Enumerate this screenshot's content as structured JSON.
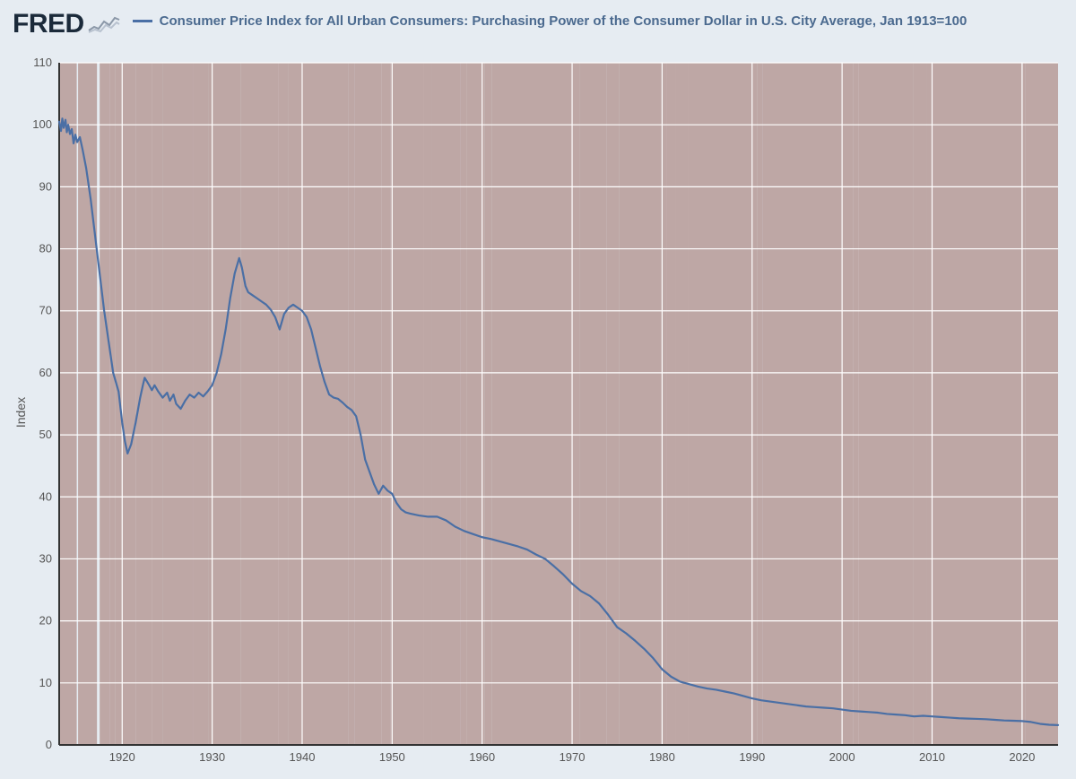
{
  "header": {
    "logo_text": "FRED",
    "legend_label": "Consumer Price Index for All Urban Consumers: Purchasing Power of the Consumer Dollar in U.S. City Average, Jan 1913=100"
  },
  "chart": {
    "type": "line",
    "ylabel": "Index",
    "x_domain": [
      1913,
      2024
    ],
    "y_domain": [
      0,
      110
    ],
    "x_ticks": [
      1920,
      1930,
      1940,
      1950,
      1960,
      1970,
      1980,
      1990,
      2000,
      2010,
      2020
    ],
    "y_ticks": [
      0,
      10,
      20,
      30,
      40,
      50,
      60,
      70,
      80,
      90,
      100,
      110
    ],
    "background_color": "#e6ecf2",
    "plot_background": "#e6ecf2",
    "recession_fill": "#bea7a5",
    "grid_color": "#ffffff",
    "grid_width": 1.2,
    "axis_line_color": "#333333",
    "line_color": "#4a6fa5",
    "line_width": 2.2,
    "tick_font_size": 13,
    "label_font_size": 14,
    "legend_font_size": 15,
    "recession_bands": [
      [
        1913.0,
        1914.95
      ],
      [
        1918.6,
        1919.2
      ],
      [
        1920.05,
        1921.55
      ],
      [
        1923.35,
        1924.55
      ],
      [
        1926.75,
        1927.85
      ],
      [
        1929.6,
        1933.2
      ],
      [
        1937.35,
        1938.45
      ],
      [
        1945.1,
        1945.8
      ],
      [
        1948.85,
        1949.8
      ],
      [
        1953.5,
        1954.4
      ],
      [
        1957.6,
        1958.3
      ],
      [
        1960.3,
        1961.1
      ],
      [
        1969.95,
        1970.85
      ],
      [
        1973.85,
        1975.2
      ],
      [
        1980.05,
        1980.55
      ],
      [
        1981.55,
        1982.85
      ],
      [
        1990.55,
        1991.2
      ],
      [
        2001.2,
        2001.85
      ],
      [
        2007.95,
        2009.45
      ],
      [
        2020.1,
        2020.35
      ]
    ],
    "recession_overlay_bands": [
      [
        1915.1,
        1917.2
      ],
      [
        1917.5,
        1918.6
      ],
      [
        1919.2,
        1920.05
      ],
      [
        1921.55,
        1923.35
      ],
      [
        1924.55,
        1926.75
      ],
      [
        1927.85,
        1929.6
      ],
      [
        1933.2,
        1937.35
      ],
      [
        1938.45,
        1945.1
      ],
      [
        1945.8,
        1948.85
      ],
      [
        1949.8,
        1953.5
      ],
      [
        1954.4,
        1957.6
      ],
      [
        1958.3,
        1960.3
      ],
      [
        1961.1,
        1969.95
      ],
      [
        1970.85,
        1973.85
      ],
      [
        1975.2,
        1980.05
      ],
      [
        1980.55,
        1981.55
      ],
      [
        1982.85,
        1990.55
      ],
      [
        1991.2,
        2001.2
      ],
      [
        2001.85,
        2007.95
      ],
      [
        2009.45,
        2020.1
      ],
      [
        2020.35,
        2024.0
      ]
    ],
    "series": [
      {
        "x": 1913.0,
        "y": 100.5
      },
      {
        "x": 1913.2,
        "y": 99.0
      },
      {
        "x": 1913.35,
        "y": 101.0
      },
      {
        "x": 1913.5,
        "y": 99.5
      },
      {
        "x": 1913.7,
        "y": 100.8
      },
      {
        "x": 1913.85,
        "y": 98.8
      },
      {
        "x": 1914.0,
        "y": 100.0
      },
      {
        "x": 1914.2,
        "y": 98.5
      },
      {
        "x": 1914.4,
        "y": 99.3
      },
      {
        "x": 1914.6,
        "y": 97.0
      },
      {
        "x": 1914.8,
        "y": 98.4
      },
      {
        "x": 1915.0,
        "y": 97.2
      },
      {
        "x": 1915.3,
        "y": 98.0
      },
      {
        "x": 1915.6,
        "y": 96.0
      },
      {
        "x": 1916.0,
        "y": 93.0
      },
      {
        "x": 1916.5,
        "y": 88.0
      },
      {
        "x": 1917.0,
        "y": 82.0
      },
      {
        "x": 1917.5,
        "y": 76.0
      },
      {
        "x": 1918.0,
        "y": 70.0
      },
      {
        "x": 1918.5,
        "y": 65.0
      },
      {
        "x": 1919.0,
        "y": 60.0
      },
      {
        "x": 1919.3,
        "y": 58.5
      },
      {
        "x": 1919.6,
        "y": 57.0
      },
      {
        "x": 1920.0,
        "y": 52.0
      },
      {
        "x": 1920.3,
        "y": 49.0
      },
      {
        "x": 1920.6,
        "y": 47.0
      },
      {
        "x": 1921.0,
        "y": 48.5
      },
      {
        "x": 1921.5,
        "y": 52.0
      },
      {
        "x": 1922.0,
        "y": 56.0
      },
      {
        "x": 1922.3,
        "y": 58.0
      },
      {
        "x": 1922.5,
        "y": 59.2
      },
      {
        "x": 1922.8,
        "y": 58.5
      },
      {
        "x": 1923.0,
        "y": 58.0
      },
      {
        "x": 1923.3,
        "y": 57.2
      },
      {
        "x": 1923.6,
        "y": 58.0
      },
      {
        "x": 1924.0,
        "y": 57.0
      },
      {
        "x": 1924.5,
        "y": 56.0
      },
      {
        "x": 1925.0,
        "y": 56.8
      },
      {
        "x": 1925.3,
        "y": 55.5
      },
      {
        "x": 1925.7,
        "y": 56.5
      },
      {
        "x": 1926.0,
        "y": 55.0
      },
      {
        "x": 1926.5,
        "y": 54.2
      },
      {
        "x": 1927.0,
        "y": 55.5
      },
      {
        "x": 1927.5,
        "y": 56.5
      },
      {
        "x": 1928.0,
        "y": 56.0
      },
      {
        "x": 1928.5,
        "y": 56.8
      },
      {
        "x": 1929.0,
        "y": 56.2
      },
      {
        "x": 1929.5,
        "y": 57.0
      },
      {
        "x": 1930.0,
        "y": 58.0
      },
      {
        "x": 1930.5,
        "y": 60.0
      },
      {
        "x": 1931.0,
        "y": 63.0
      },
      {
        "x": 1931.5,
        "y": 67.0
      },
      {
        "x": 1932.0,
        "y": 72.0
      },
      {
        "x": 1932.5,
        "y": 76.0
      },
      {
        "x": 1933.0,
        "y": 78.5
      },
      {
        "x": 1933.3,
        "y": 77.0
      },
      {
        "x": 1933.7,
        "y": 74.0
      },
      {
        "x": 1934.0,
        "y": 73.0
      },
      {
        "x": 1934.5,
        "y": 72.5
      },
      {
        "x": 1935.0,
        "y": 72.0
      },
      {
        "x": 1935.5,
        "y": 71.5
      },
      {
        "x": 1936.0,
        "y": 71.0
      },
      {
        "x": 1936.5,
        "y": 70.2
      },
      {
        "x": 1937.0,
        "y": 69.0
      },
      {
        "x": 1937.5,
        "y": 67.0
      },
      {
        "x": 1938.0,
        "y": 69.5
      },
      {
        "x": 1938.5,
        "y": 70.5
      },
      {
        "x": 1939.0,
        "y": 71.0
      },
      {
        "x": 1939.5,
        "y": 70.5
      },
      {
        "x": 1940.0,
        "y": 70.0
      },
      {
        "x": 1940.5,
        "y": 69.0
      },
      {
        "x": 1941.0,
        "y": 67.0
      },
      {
        "x": 1941.5,
        "y": 64.0
      },
      {
        "x": 1942.0,
        "y": 61.0
      },
      {
        "x": 1942.5,
        "y": 58.5
      },
      {
        "x": 1943.0,
        "y": 56.5
      },
      {
        "x": 1943.5,
        "y": 56.0
      },
      {
        "x": 1944.0,
        "y": 55.8
      },
      {
        "x": 1944.5,
        "y": 55.2
      },
      {
        "x": 1945.0,
        "y": 54.5
      },
      {
        "x": 1945.5,
        "y": 54.0
      },
      {
        "x": 1946.0,
        "y": 53.0
      },
      {
        "x": 1946.5,
        "y": 50.0
      },
      {
        "x": 1947.0,
        "y": 46.0
      },
      {
        "x": 1947.5,
        "y": 44.0
      },
      {
        "x": 1948.0,
        "y": 42.0
      },
      {
        "x": 1948.5,
        "y": 40.5
      },
      {
        "x": 1949.0,
        "y": 41.8
      },
      {
        "x": 1949.5,
        "y": 41.0
      },
      {
        "x": 1950.0,
        "y": 40.5
      },
      {
        "x": 1950.5,
        "y": 39.0
      },
      {
        "x": 1951.0,
        "y": 38.0
      },
      {
        "x": 1951.5,
        "y": 37.5
      },
      {
        "x": 1952.0,
        "y": 37.3
      },
      {
        "x": 1953.0,
        "y": 37.0
      },
      {
        "x": 1954.0,
        "y": 36.8
      },
      {
        "x": 1955.0,
        "y": 36.8
      },
      {
        "x": 1956.0,
        "y": 36.2
      },
      {
        "x": 1957.0,
        "y": 35.2
      },
      {
        "x": 1958.0,
        "y": 34.5
      },
      {
        "x": 1959.0,
        "y": 34.0
      },
      {
        "x": 1960.0,
        "y": 33.5
      },
      {
        "x": 1961.0,
        "y": 33.2
      },
      {
        "x": 1962.0,
        "y": 32.8
      },
      {
        "x": 1963.0,
        "y": 32.4
      },
      {
        "x": 1964.0,
        "y": 32.0
      },
      {
        "x": 1965.0,
        "y": 31.5
      },
      {
        "x": 1966.0,
        "y": 30.7
      },
      {
        "x": 1967.0,
        "y": 30.0
      },
      {
        "x": 1968.0,
        "y": 28.8
      },
      {
        "x": 1969.0,
        "y": 27.5
      },
      {
        "x": 1970.0,
        "y": 26.0
      },
      {
        "x": 1971.0,
        "y": 24.8
      },
      {
        "x": 1972.0,
        "y": 24.0
      },
      {
        "x": 1973.0,
        "y": 22.8
      },
      {
        "x": 1974.0,
        "y": 21.0
      },
      {
        "x": 1975.0,
        "y": 19.0
      },
      {
        "x": 1976.0,
        "y": 18.0
      },
      {
        "x": 1977.0,
        "y": 16.8
      },
      {
        "x": 1978.0,
        "y": 15.5
      },
      {
        "x": 1979.0,
        "y": 14.0
      },
      {
        "x": 1980.0,
        "y": 12.2
      },
      {
        "x": 1981.0,
        "y": 11.0
      },
      {
        "x": 1982.0,
        "y": 10.2
      },
      {
        "x": 1983.0,
        "y": 9.8
      },
      {
        "x": 1984.0,
        "y": 9.4
      },
      {
        "x": 1985.0,
        "y": 9.1
      },
      {
        "x": 1986.0,
        "y": 8.9
      },
      {
        "x": 1987.0,
        "y": 8.6
      },
      {
        "x": 1988.0,
        "y": 8.3
      },
      {
        "x": 1989.0,
        "y": 7.9
      },
      {
        "x": 1990.0,
        "y": 7.5
      },
      {
        "x": 1991.0,
        "y": 7.2
      },
      {
        "x": 1992.0,
        "y": 7.0
      },
      {
        "x": 1993.0,
        "y": 6.8
      },
      {
        "x": 1994.0,
        "y": 6.6
      },
      {
        "x": 1995.0,
        "y": 6.4
      },
      {
        "x": 1996.0,
        "y": 6.2
      },
      {
        "x": 1997.0,
        "y": 6.1
      },
      {
        "x": 1998.0,
        "y": 6.0
      },
      {
        "x": 1999.0,
        "y": 5.9
      },
      {
        "x": 2000.0,
        "y": 5.7
      },
      {
        "x": 2001.0,
        "y": 5.5
      },
      {
        "x": 2002.0,
        "y": 5.4
      },
      {
        "x": 2003.0,
        "y": 5.3
      },
      {
        "x": 2004.0,
        "y": 5.2
      },
      {
        "x": 2005.0,
        "y": 5.0
      },
      {
        "x": 2006.0,
        "y": 4.9
      },
      {
        "x": 2007.0,
        "y": 4.8
      },
      {
        "x": 2008.0,
        "y": 4.6
      },
      {
        "x": 2009.0,
        "y": 4.7
      },
      {
        "x": 2010.0,
        "y": 4.6
      },
      {
        "x": 2011.0,
        "y": 4.5
      },
      {
        "x": 2012.0,
        "y": 4.4
      },
      {
        "x": 2013.0,
        "y": 4.3
      },
      {
        "x": 2014.0,
        "y": 4.25
      },
      {
        "x": 2015.0,
        "y": 4.2
      },
      {
        "x": 2016.0,
        "y": 4.15
      },
      {
        "x": 2017.0,
        "y": 4.05
      },
      {
        "x": 2018.0,
        "y": 3.95
      },
      {
        "x": 2019.0,
        "y": 3.9
      },
      {
        "x": 2020.0,
        "y": 3.85
      },
      {
        "x": 2021.0,
        "y": 3.7
      },
      {
        "x": 2022.0,
        "y": 3.4
      },
      {
        "x": 2023.0,
        "y": 3.25
      },
      {
        "x": 2024.0,
        "y": 3.2
      }
    ]
  }
}
